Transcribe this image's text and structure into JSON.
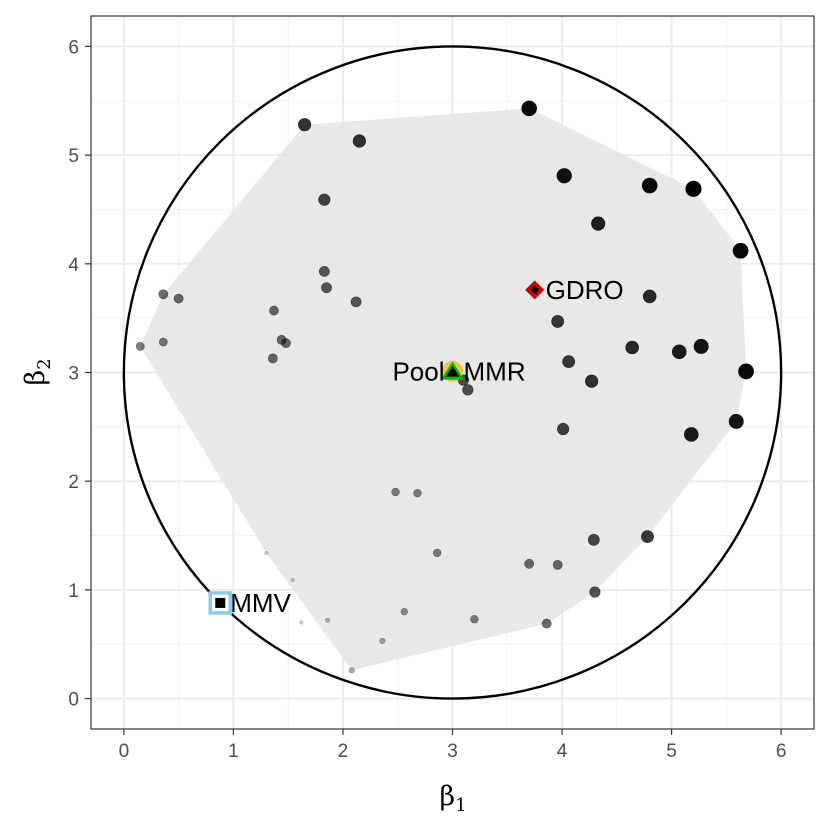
{
  "chart_data": {
    "type": "scatter",
    "title": "",
    "xlabel": "β",
    "xlabel_sub": "1",
    "ylabel": "β",
    "ylabel_sub": "2",
    "xlim": [
      -0.3,
      6.3
    ],
    "ylim": [
      -0.28,
      6.28
    ],
    "x_ticks": [
      0,
      1,
      2,
      3,
      4,
      5,
      6
    ],
    "y_ticks": [
      0,
      1,
      2,
      3,
      4,
      5,
      6
    ],
    "x_minor": [
      0.5,
      1.5,
      2.5,
      3.5,
      4.5,
      5.5
    ],
    "y_minor": [
      0.5,
      1.5,
      2.5,
      3.5,
      4.5,
      5.5
    ],
    "grid": true,
    "circle": {
      "center": [
        3,
        3
      ],
      "radius": 3,
      "color": "#000000"
    },
    "hull": {
      "fill": "#e5e5e5",
      "points": [
        [
          0.15,
          3.24
        ],
        [
          0.36,
          3.72
        ],
        [
          1.65,
          5.28
        ],
        [
          3.7,
          5.43
        ],
        [
          5.2,
          4.69
        ],
        [
          5.63,
          4.12
        ],
        [
          5.68,
          3.01
        ],
        [
          5.59,
          2.55
        ],
        [
          4.78,
          1.49
        ],
        [
          4.3,
          0.98
        ],
        [
          3.86,
          0.69
        ],
        [
          2.08,
          0.26
        ],
        [
          1.3,
          1.34
        ]
      ]
    },
    "points": [
      {
        "x": 3.7,
        "y": 5.43,
        "s": 7.5
      },
      {
        "x": 1.65,
        "y": 5.28,
        "s": 6.3
      },
      {
        "x": 2.15,
        "y": 5.13,
        "s": 6.3
      },
      {
        "x": 4.02,
        "y": 4.81,
        "s": 7.3
      },
      {
        "x": 4.8,
        "y": 4.72,
        "s": 7.5
      },
      {
        "x": 5.2,
        "y": 4.69,
        "s": 7.8
      },
      {
        "x": 1.83,
        "y": 4.59,
        "s": 5.8
      },
      {
        "x": 4.33,
        "y": 4.37,
        "s": 6.8
      },
      {
        "x": 5.63,
        "y": 4.12,
        "s": 7.6
      },
      {
        "x": 1.83,
        "y": 3.93,
        "s": 5.1
      },
      {
        "x": 1.85,
        "y": 3.78,
        "s": 5.1
      },
      {
        "x": 4.8,
        "y": 3.7,
        "s": 6.5
      },
      {
        "x": 0.36,
        "y": 3.72,
        "s": 4.6
      },
      {
        "x": 0.5,
        "y": 3.68,
        "s": 4.6
      },
      {
        "x": 2.12,
        "y": 3.65,
        "s": 5.1
      },
      {
        "x": 1.37,
        "y": 3.57,
        "s": 4.6
      },
      {
        "x": 3.96,
        "y": 3.47,
        "s": 6.1
      },
      {
        "x": 1.44,
        "y": 3.3,
        "s": 4.6
      },
      {
        "x": 1.48,
        "y": 3.27,
        "s": 4.6
      },
      {
        "x": 0.36,
        "y": 3.28,
        "s": 4.1
      },
      {
        "x": 0.15,
        "y": 3.24,
        "s": 4.1
      },
      {
        "x": 4.64,
        "y": 3.23,
        "s": 6.5
      },
      {
        "x": 5.27,
        "y": 3.24,
        "s": 7.2
      },
      {
        "x": 5.07,
        "y": 3.19,
        "s": 7.0
      },
      {
        "x": 1.36,
        "y": 3.13,
        "s": 4.6
      },
      {
        "x": 4.06,
        "y": 3.1,
        "s": 6.1
      },
      {
        "x": 5.68,
        "y": 3.01,
        "s": 7.6
      },
      {
        "x": 3.1,
        "y": 2.93,
        "s": 5.3
      },
      {
        "x": 4.27,
        "y": 2.92,
        "s": 6.3
      },
      {
        "x": 3.14,
        "y": 2.84,
        "s": 5.3
      },
      {
        "x": 5.59,
        "y": 2.55,
        "s": 7.2
      },
      {
        "x": 4.01,
        "y": 2.48,
        "s": 5.8
      },
      {
        "x": 5.18,
        "y": 2.43,
        "s": 7.0
      },
      {
        "x": 2.48,
        "y": 1.9,
        "s": 3.9
      },
      {
        "x": 2.68,
        "y": 1.89,
        "s": 3.9
      },
      {
        "x": 4.78,
        "y": 1.49,
        "s": 6.1
      },
      {
        "x": 4.29,
        "y": 1.46,
        "s": 5.6
      },
      {
        "x": 2.86,
        "y": 1.34,
        "s": 3.9
      },
      {
        "x": 3.7,
        "y": 1.24,
        "s": 4.6
      },
      {
        "x": 3.96,
        "y": 1.23,
        "s": 4.6
      },
      {
        "x": 1.3,
        "y": 1.34,
        "s": 1.8
      },
      {
        "x": 1.54,
        "y": 1.09,
        "s": 1.8
      },
      {
        "x": 4.3,
        "y": 0.98,
        "s": 5.3
      },
      {
        "x": 2.56,
        "y": 0.8,
        "s": 3.4
      },
      {
        "x": 3.2,
        "y": 0.73,
        "s": 3.9
      },
      {
        "x": 1.62,
        "y": 0.7,
        "s": 1.8
      },
      {
        "x": 1.86,
        "y": 0.72,
        "s": 2.3
      },
      {
        "x": 3.86,
        "y": 0.69,
        "s": 4.6
      },
      {
        "x": 2.36,
        "y": 0.53,
        "s": 2.8
      },
      {
        "x": 2.08,
        "y": 0.26,
        "s": 2.8
      }
    ],
    "annotations": [
      {
        "name": "pool-mmr-label",
        "label": "Pool",
        "x": 3.0,
        "y": 3.01,
        "anchor": "end",
        "dx": -8
      },
      {
        "name": "mmr-label",
        "label": "MMR",
        "x": 3.0,
        "y": 3.01,
        "anchor": "start",
        "dx": 11
      },
      {
        "name": "gdro-label",
        "label": "GDRO",
        "x": 3.75,
        "y": 3.76,
        "anchor": "start",
        "dx": 11
      },
      {
        "name": "mmv-label",
        "label": "MMV",
        "x": 0.88,
        "y": 0.88,
        "anchor": "start",
        "dx": 10
      }
    ],
    "markers": {
      "pool": {
        "x": 3.0,
        "y": 3.01,
        "color": "#f5c242"
      },
      "mmr": {
        "x": 3.0,
        "y": 3.01,
        "color": "#00c000"
      },
      "gdro": {
        "x": 3.75,
        "y": 3.76,
        "color": "#d00000"
      },
      "mmv": {
        "x": 0.88,
        "y": 0.88,
        "color": "#87ceeb"
      }
    }
  }
}
